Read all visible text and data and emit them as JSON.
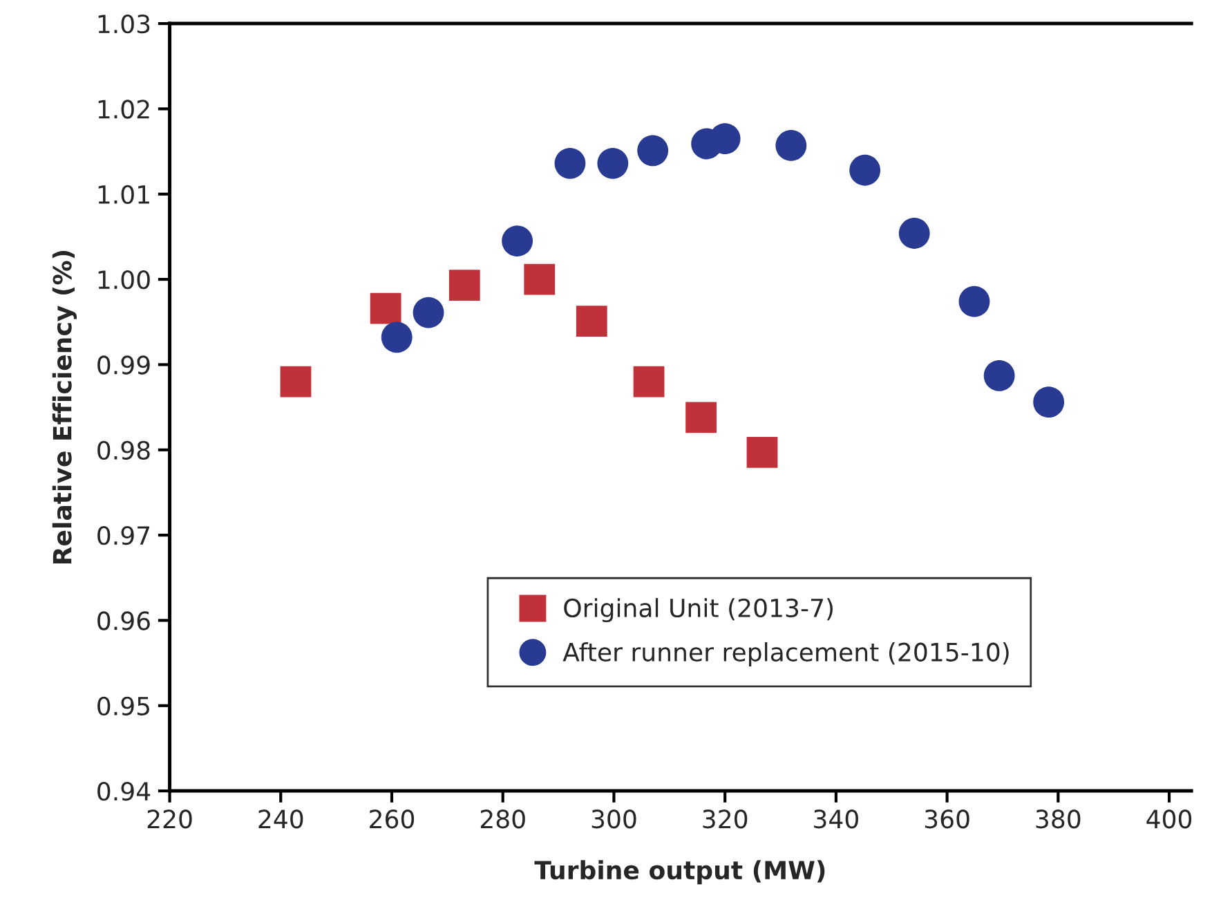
{
  "chart_data": {
    "type": "scatter",
    "xlabel": "Turbine output (MW)",
    "ylabel": "Relative Efficiency (%)",
    "xlim": [
      220,
      404
    ],
    "xticks": [
      220,
      240,
      260,
      280,
      300,
      320,
      340,
      360,
      380,
      400
    ],
    "ylim": [
      0.94,
      1.03
    ],
    "yticks": [
      0.94,
      0.95,
      0.96,
      0.97,
      0.98,
      0.99,
      {
        "value": 1.0,
        "label": "1.00"
      },
      1.01,
      1.02,
      1.03
    ],
    "grid": false,
    "legend": "bottom right",
    "series": [
      {
        "name": "Original Unit (2013-7)",
        "color": "#c1313a",
        "marker": "square",
        "x": [
          242.7,
          258.9,
          273.1,
          286.6,
          296.0,
          306.3,
          315.7,
          326.7
        ],
        "values": [
          0.988,
          0.9966,
          0.9993,
          1.0,
          0.9951,
          0.988,
          0.9838,
          0.9797
        ]
      },
      {
        "name": "After runner replacement (2015-10)",
        "color": "#283a92",
        "marker": "circle",
        "x": [
          260.9,
          266.6,
          282.6,
          292.1,
          299.8,
          307.0,
          316.7,
          320.0,
          331.9,
          345.2,
          354.1,
          364.9,
          369.4,
          378.3
        ],
        "values": [
          0.9932,
          0.9961,
          1.0045,
          1.0136,
          1.0136,
          1.0151,
          1.0159,
          1.0165,
          1.0157,
          1.0128,
          1.0054,
          0.9974,
          0.9887,
          0.9856
        ]
      }
    ]
  }
}
